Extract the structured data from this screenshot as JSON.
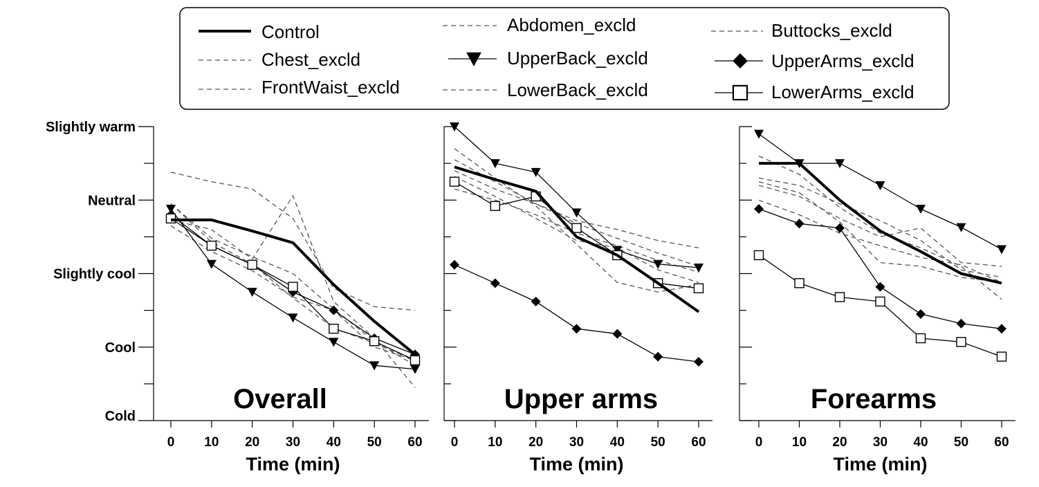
{
  "chart_data": {
    "type": "line",
    "y_categories": [
      "Cold",
      "Cool",
      "Slightly cool",
      "Neutral",
      "Slightly warm"
    ],
    "ylim": [
      -2,
      2
    ],
    "x": [
      0,
      10,
      20,
      30,
      40,
      50,
      60
    ],
    "xlabel": "Time (min)",
    "legend": {
      "placement": "top",
      "entries": [
        {
          "key": "control",
          "label": "Control",
          "style": "thick-solid"
        },
        {
          "key": "chest",
          "label": "Chest_excld",
          "style": "dashed"
        },
        {
          "key": "frontwaist",
          "label": "FrontWaist_excld",
          "style": "dashed"
        },
        {
          "key": "abdomen",
          "label": "Abdomen_excld",
          "style": "dashed"
        },
        {
          "key": "upperback",
          "label": "UpperBack_excld",
          "style": "solid-triangle-down"
        },
        {
          "key": "lowerback",
          "label": "LowerBack_excld",
          "style": "dashed"
        },
        {
          "key": "buttocks",
          "label": "Buttocks_excld",
          "style": "dashed"
        },
        {
          "key": "upperarms",
          "label": "UpperArms_excld",
          "style": "solid-diamond"
        },
        {
          "key": "lowerarms",
          "label": "LowerArms_excld",
          "style": "solid-open-square"
        }
      ]
    },
    "panels": [
      {
        "title": "Overall",
        "series": [
          {
            "key": "control",
            "values": [
              0.73,
              0.73,
              0.58,
              0.42,
              -0.15,
              -0.65,
              -1.1
            ]
          },
          {
            "key": "chest",
            "values": [
              0.95,
              0.43,
              0.13,
              -0.33,
              -0.74,
              -0.95,
              -1.18
            ]
          },
          {
            "key": "frontwaist",
            "values": [
              0.95,
              0.48,
              0.23,
              0.0,
              -0.48,
              -0.92,
              -1.25
            ]
          },
          {
            "key": "abdomen",
            "values": [
              0.73,
              0.6,
              0.2,
              1.06,
              -0.38,
              -0.88,
              -1.55
            ]
          },
          {
            "key": "upperback",
            "values": [
              0.88,
              0.13,
              -0.25,
              -0.6,
              -0.93,
              -1.25,
              -1.3
            ]
          },
          {
            "key": "lowerback",
            "values": [
              0.65,
              0.3,
              0.04,
              -0.32,
              -0.5,
              -1.0,
              -1.18
            ]
          },
          {
            "key": "buttocks",
            "values": [
              1.38,
              1.25,
              1.15,
              0.75,
              -0.2,
              -0.45,
              -0.5
            ]
          },
          {
            "key": "upperarms",
            "values": [
              0.8,
              0.38,
              0.12,
              -0.25,
              -0.5,
              -0.88,
              -1.1
            ]
          },
          {
            "key": "lowerarms",
            "values": [
              0.75,
              0.38,
              0.12,
              -0.18,
              -0.75,
              -0.92,
              -1.18
            ]
          }
        ]
      },
      {
        "title": "Upper arms",
        "series": [
          {
            "key": "control",
            "values": [
              1.45,
              1.28,
              1.12,
              0.5,
              0.25,
              -0.13,
              -0.52
            ]
          },
          {
            "key": "chest",
            "values": [
              1.32,
              1.05,
              0.75,
              0.45,
              0.35,
              0.05,
              -0.12
            ]
          },
          {
            "key": "frontwaist",
            "values": [
              1.55,
              1.25,
              0.95,
              0.72,
              0.6,
              0.45,
              0.35
            ]
          },
          {
            "key": "abdomen",
            "values": [
              1.7,
              1.3,
              0.92,
              0.4,
              -0.12,
              -0.25,
              -0.15
            ]
          },
          {
            "key": "upperback",
            "values": [
              2.0,
              1.5,
              1.38,
              0.83,
              0.32,
              0.13,
              0.08
            ]
          },
          {
            "key": "lowerback",
            "values": [
              1.15,
              1.0,
              0.8,
              0.55,
              0.38,
              0.18,
              0.02
            ]
          },
          {
            "key": "buttocks",
            "values": [
              1.4,
              1.15,
              0.95,
              0.68,
              0.48,
              0.28,
              0.1
            ]
          },
          {
            "key": "upperarms",
            "values": [
              0.12,
              -0.13,
              -0.38,
              -0.75,
              -0.82,
              -1.13,
              -1.2
            ]
          },
          {
            "key": "lowerarms",
            "values": [
              1.25,
              0.92,
              1.05,
              0.62,
              0.25,
              -0.13,
              -0.2
            ]
          }
        ]
      },
      {
        "title": "Forearms",
        "series": [
          {
            "key": "control",
            "values": [
              1.5,
              1.5,
              1.0,
              0.58,
              0.3,
              0.0,
              -0.13
            ]
          },
          {
            "key": "chest",
            "values": [
              1.6,
              1.35,
              0.9,
              0.55,
              0.35,
              0.1,
              -0.35
            ]
          },
          {
            "key": "frontwaist",
            "values": [
              1.3,
              1.2,
              0.95,
              0.72,
              0.45,
              0.05,
              -0.05
            ]
          },
          {
            "key": "abdomen",
            "values": [
              1.2,
              1.05,
              0.75,
              0.5,
              0.62,
              0.15,
              0.1
            ]
          },
          {
            "key": "upperback",
            "values": [
              1.9,
              1.5,
              1.5,
              1.2,
              0.88,
              0.63,
              0.33
            ]
          },
          {
            "key": "lowerback",
            "values": [
              1.0,
              0.8,
              0.55,
              0.38,
              0.22,
              0.12,
              -0.12
            ]
          },
          {
            "key": "buttocks",
            "values": [
              1.25,
              1.1,
              0.7,
              0.15,
              0.1,
              -0.05,
              -0.12
            ]
          },
          {
            "key": "upperarms",
            "values": [
              0.88,
              0.68,
              0.62,
              -0.18,
              -0.55,
              -0.68,
              -0.75
            ]
          },
          {
            "key": "lowerarms",
            "values": [
              0.25,
              -0.13,
              -0.32,
              -0.38,
              -0.88,
              -0.93,
              -1.13
            ]
          }
        ]
      }
    ]
  }
}
